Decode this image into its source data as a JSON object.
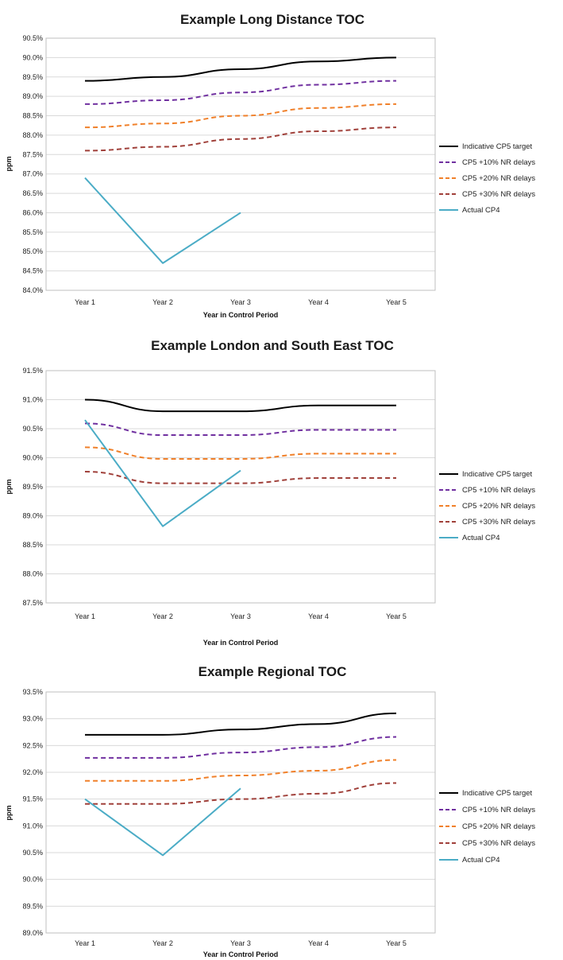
{
  "chart_data": [
    {
      "type": "line",
      "title": "Example Long Distance TOC",
      "xlabel": "Year in Control Period",
      "ylabel": "ppm",
      "categories": [
        "Year 1",
        "Year 2",
        "Year 3",
        "Year 4",
        "Year 5"
      ],
      "y_ticks": [
        "84.0%",
        "84.5%",
        "85.0%",
        "85.5%",
        "86.0%",
        "86.5%",
        "87.0%",
        "87.5%",
        "88.0%",
        "88.5%",
        "89.0%",
        "89.5%",
        "90.0%",
        "90.5%"
      ],
      "ylim": [
        84.0,
        90.5
      ],
      "grid": true,
      "legend_position": "right",
      "series": [
        {
          "name": "Indicative CP5 target",
          "color": "#000000",
          "dash": "solid",
          "values": [
            89.4,
            89.5,
            89.7,
            89.9,
            90.0
          ]
        },
        {
          "name": "CP5 +10% NR delays",
          "color": "#7030a0",
          "dash": "dashed",
          "values": [
            88.8,
            88.9,
            89.1,
            89.3,
            89.4
          ]
        },
        {
          "name": "CP5 +20% NR delays",
          "color": "#f0802a",
          "dash": "dashed",
          "values": [
            88.2,
            88.3,
            88.5,
            88.7,
            88.8
          ]
        },
        {
          "name": "CP5 +30% NR delays",
          "color": "#a0403a",
          "dash": "dashed",
          "values": [
            87.6,
            87.7,
            87.9,
            88.1,
            88.2
          ]
        },
        {
          "name": "Actual CP4",
          "color": "#4bacc6",
          "dash": "solid",
          "values": [
            86.9,
            84.7,
            86.0,
            null,
            null
          ]
        }
      ]
    },
    {
      "type": "line",
      "title": "Example London and South East TOC",
      "xlabel": "Year in Control Period",
      "ylabel": "ppm",
      "categories": [
        "Year 1",
        "Year 2",
        "Year 3",
        "Year 4",
        "Year 5"
      ],
      "y_ticks": [
        "87.5%",
        "88.0%",
        "88.5%",
        "89.0%",
        "89.5%",
        "90.0%",
        "90.5%",
        "91.0%",
        "91.5%"
      ],
      "ylim": [
        87.5,
        91.5
      ],
      "grid": true,
      "legend_position": "right",
      "series": [
        {
          "name": "Indicative CP5 target",
          "color": "#000000",
          "dash": "solid",
          "values": [
            91.0,
            90.8,
            90.8,
            90.9,
            90.9
          ]
        },
        {
          "name": "CP5 +10% NR delays",
          "color": "#7030a0",
          "dash": "dashed",
          "values": [
            90.59,
            90.39,
            90.39,
            90.48,
            90.48
          ]
        },
        {
          "name": "CP5 +20% NR delays",
          "color": "#f0802a",
          "dash": "dashed",
          "values": [
            90.18,
            89.98,
            89.98,
            90.07,
            90.07
          ]
        },
        {
          "name": "CP5 +30% NR delays",
          "color": "#a0403a",
          "dash": "dashed",
          "values": [
            89.76,
            89.56,
            89.56,
            89.65,
            89.65
          ]
        },
        {
          "name": "Actual CP4",
          "color": "#4bacc6",
          "dash": "solid",
          "values": [
            90.65,
            88.82,
            89.78,
            null,
            null
          ]
        }
      ]
    },
    {
      "type": "line",
      "title": "Example Regional TOC",
      "xlabel": "Year in Control Period",
      "ylabel": "ppm",
      "categories": [
        "Year 1",
        "Year 2",
        "Year 3",
        "Year 4",
        "Year 5"
      ],
      "y_ticks": [
        "89.0%",
        "89.5%",
        "90.0%",
        "90.5%",
        "91.0%",
        "91.5%",
        "92.0%",
        "92.5%",
        "93.0%",
        "93.5%"
      ],
      "ylim": [
        89.0,
        93.5
      ],
      "grid": true,
      "legend_position": "right",
      "series": [
        {
          "name": "Indicative CP5 target",
          "color": "#000000",
          "dash": "solid",
          "values": [
            92.7,
            92.7,
            92.8,
            92.9,
            93.1
          ]
        },
        {
          "name": "CP5 +10% NR delays",
          "color": "#7030a0",
          "dash": "dashed",
          "values": [
            92.27,
            92.27,
            92.37,
            92.47,
            92.66
          ]
        },
        {
          "name": "CP5 +20% NR delays",
          "color": "#f0802a",
          "dash": "dashed",
          "values": [
            91.84,
            91.84,
            91.94,
            92.03,
            92.23
          ]
        },
        {
          "name": "CP5 +30% NR delays",
          "color": "#a0403a",
          "dash": "dashed",
          "values": [
            91.41,
            91.41,
            91.5,
            91.6,
            91.8
          ]
        },
        {
          "name": "Actual CP4",
          "color": "#4bacc6",
          "dash": "solid",
          "values": [
            91.5,
            90.45,
            91.7,
            null,
            null
          ]
        }
      ]
    }
  ]
}
